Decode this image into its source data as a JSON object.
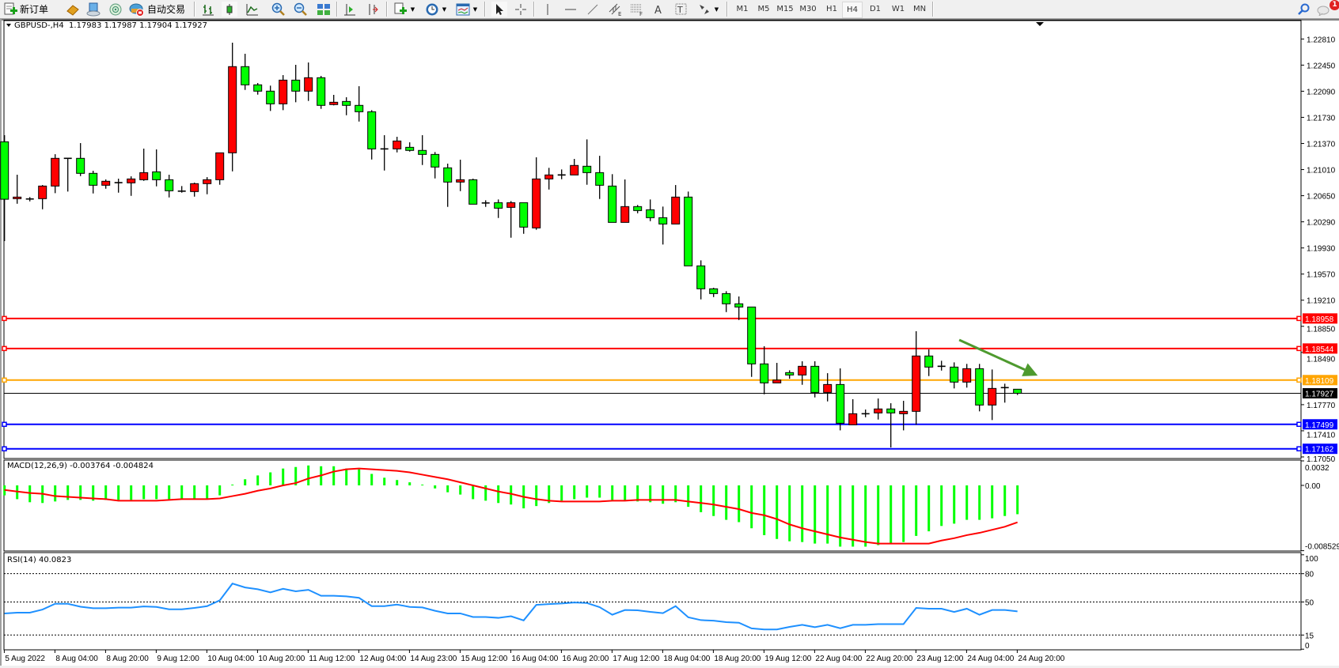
{
  "toolbar": {
    "new_order_label": "新订单",
    "auto_trading_label": "自动交易",
    "icons": [
      "new-order-icon",
      "history-center-icon",
      "terminal-icon",
      "signals-icon",
      "auto-trading-icon",
      "bar-chart-icon",
      "candlestick-icon",
      "line-chart-icon",
      "zoom-in-icon",
      "zoom-out-icon",
      "tile-windows-icon",
      "chart-shift-icon",
      "autoscroll-icon",
      "indicators-icon",
      "periods-clock-icon",
      "templates-icon",
      "cursor-icon",
      "crosshair-icon",
      "vertical-line-icon",
      "horizontal-line-icon",
      "trendline-icon",
      "equidistant-channel-icon",
      "fibonacci-icon",
      "text-icon",
      "text-label-icon",
      "arrows-icon",
      "search-icon",
      "chat-icon"
    ],
    "periods": [
      "M1",
      "M5",
      "M15",
      "M30",
      "H1",
      "H4",
      "D1",
      "W1",
      "MN"
    ],
    "active_period": "H4",
    "notification_count": "1"
  },
  "chart": {
    "header": "GBPUSD-,H4  1.17983 1.17987 1.17904 1.17927",
    "symbol": "GBPUSD-",
    "timeframe": "H4",
    "ohlc_header": {
      "open": 1.17983,
      "high": 1.17987,
      "low": 1.17904,
      "close": 1.17927
    }
  },
  "chart_data": [
    {
      "type": "candlestick",
      "title": "GBPUSD-,H4",
      "up_color": "#FF0000",
      "down_color": "#00FF00",
      "wick_color": "#000000",
      "ylim": [
        1.17028,
        1.23064
      ],
      "y_ticks": [
        "1.22810",
        "1.22450",
        "1.22090",
        "1.21730",
        "1.21370",
        "1.21010",
        "1.20650",
        "1.20290",
        "1.19930",
        "1.19570",
        "1.19210",
        "1.18850",
        "1.18490",
        "1.17770",
        "1.17410",
        "1.17050"
      ],
      "x_tick_labels": [
        "5 Aug 2022",
        "8 Aug 04:00",
        "8 Aug 20:00",
        "9 Aug 12:00",
        "10 Aug 04:00",
        "10 Aug 20:00",
        "11 Aug 12:00",
        "12 Aug 04:00",
        "14 Aug 23:00",
        "15 Aug 12:00",
        "16 Aug 04:00",
        "16 Aug 20:00",
        "17 Aug 12:00",
        "18 Aug 04:00",
        "18 Aug 20:00",
        "19 Aug 12:00",
        "22 Aug 04:00",
        "22 Aug 20:00",
        "23 Aug 12:00",
        "24 Aug 04:00",
        "24 Aug 20:00"
      ],
      "x_tick_every_bars": 4,
      "ohlc": [
        [
          1.21393,
          1.21484,
          1.20024,
          1.20601
        ],
        [
          1.20609,
          1.20939,
          1.20539,
          1.20631
        ],
        [
          1.20605,
          1.20631,
          1.20572,
          1.20605
        ],
        [
          1.20609,
          1.20797,
          1.20463,
          1.20783
        ],
        [
          1.20783,
          1.21222,
          1.20685,
          1.21165
        ],
        [
          1.21165,
          1.21165,
          1.20707,
          1.21165
        ],
        [
          1.21165,
          1.21375,
          1.2092,
          1.20958
        ],
        [
          1.20958,
          1.20994,
          1.20681,
          1.20794
        ],
        [
          1.20794,
          1.20874,
          1.20746,
          1.20849
        ],
        [
          1.2083,
          1.20885,
          1.20692,
          1.2083
        ],
        [
          1.20827,
          1.20917,
          1.20648,
          1.20881
        ],
        [
          1.2087,
          1.21299,
          1.20855,
          1.20968
        ],
        [
          1.20979,
          1.21288,
          1.20779,
          1.2087
        ],
        [
          1.2087,
          1.20939,
          1.20626,
          1.20718
        ],
        [
          1.20713,
          1.20783,
          1.20692,
          1.20713
        ],
        [
          1.20707,
          1.2083,
          1.20637,
          1.20816
        ],
        [
          1.20816,
          1.20906,
          1.2067,
          1.2087
        ],
        [
          1.2087,
          1.21241,
          1.20801,
          1.21241
        ],
        [
          1.21241,
          1.22759,
          1.20986,
          1.22429
        ],
        [
          1.22429,
          1.22606,
          1.22108,
          1.22178
        ],
        [
          1.22178,
          1.22203,
          1.22043,
          1.22091
        ],
        [
          1.22091,
          1.22167,
          1.21818,
          1.21916
        ],
        [
          1.21916,
          1.22312,
          1.21829,
          1.22243
        ],
        [
          1.22243,
          1.22454,
          1.21938,
          1.22091
        ],
        [
          1.22091,
          1.22486,
          1.21956,
          1.22276
        ],
        [
          1.22276,
          1.22301,
          1.21847,
          1.21895
        ],
        [
          1.21906,
          1.2204,
          1.21895,
          1.21938
        ],
        [
          1.21949,
          1.22007,
          1.21759,
          1.21895
        ],
        [
          1.21895,
          1.22159,
          1.21672,
          1.21807
        ],
        [
          1.21807,
          1.21829,
          1.21149,
          1.21295
        ],
        [
          1.21295,
          1.21484,
          1.20997,
          1.21295
        ],
        [
          1.21295,
          1.21462,
          1.21247,
          1.21404
        ],
        [
          1.21317,
          1.21386,
          1.21258,
          1.21274
        ],
        [
          1.21274,
          1.21484,
          1.21073,
          1.21219
        ],
        [
          1.21219,
          1.21252,
          1.20888,
          1.21045
        ],
        [
          1.21034,
          1.21092,
          1.20496,
          1.20838
        ],
        [
          1.20838,
          1.21146,
          1.20713,
          1.2087
        ],
        [
          1.2087,
          1.20885,
          1.20533,
          1.20533
        ],
        [
          1.2055,
          1.20587,
          1.20496,
          1.2055
        ],
        [
          1.20554,
          1.20598,
          1.20343,
          1.20478
        ],
        [
          1.20489,
          1.20576,
          1.20071,
          1.20554
        ],
        [
          1.20554,
          1.20554,
          1.20125,
          1.20217
        ],
        [
          1.20206,
          1.21179,
          1.2018,
          1.20881
        ],
        [
          1.20881,
          1.21034,
          1.20735,
          1.20936
        ],
        [
          1.20936,
          1.21012,
          1.20877,
          1.20936
        ],
        [
          1.20936,
          1.21157,
          1.20936,
          1.21067
        ],
        [
          1.21056,
          1.21426,
          1.20801,
          1.20968
        ],
        [
          1.20968,
          1.212,
          1.20605,
          1.20794
        ],
        [
          1.20783,
          1.20947,
          1.20282,
          1.20282
        ],
        [
          1.20282,
          1.20874,
          1.20282,
          1.205
        ],
        [
          1.205,
          1.20522,
          1.20408,
          1.20445
        ],
        [
          1.20456,
          1.20598,
          1.20299,
          1.20347
        ],
        [
          1.20347,
          1.205,
          1.19977,
          1.2026
        ],
        [
          1.2026,
          1.20797,
          1.2026,
          1.20631
        ],
        [
          1.20631,
          1.20707,
          1.19683,
          1.19683
        ],
        [
          1.19683,
          1.19759,
          1.19221,
          1.19367
        ],
        [
          1.19367,
          1.19381,
          1.19253,
          1.19301
        ],
        [
          1.19301,
          1.19334,
          1.19046,
          1.1916
        ],
        [
          1.1916,
          1.19261,
          1.18937,
          1.19116
        ],
        [
          1.19116,
          1.19116,
          1.18153,
          1.18332
        ],
        [
          1.18332,
          1.18575,
          1.17913,
          1.1807
        ],
        [
          1.1807,
          1.18346,
          1.1807,
          1.18109
        ],
        [
          1.18212,
          1.18244,
          1.18128,
          1.18179
        ],
        [
          1.18179,
          1.18368,
          1.18044,
          1.18299
        ],
        [
          1.18299,
          1.18368,
          1.1787,
          1.17939
        ],
        [
          1.17939,
          1.18204,
          1.17815,
          1.18048
        ],
        [
          1.18048,
          1.1827,
          1.17416,
          1.17514
        ],
        [
          1.17493,
          1.17845,
          1.17493,
          1.17645
        ],
        [
          1.17645,
          1.17703,
          1.17597,
          1.17645
        ],
        [
          1.17656,
          1.17855,
          1.17565,
          1.17711
        ],
        [
          1.17711,
          1.1779,
          1.1718,
          1.17656
        ],
        [
          1.17645,
          1.17823,
          1.17416,
          1.17678
        ],
        [
          1.17678,
          1.18782,
          1.17493,
          1.18441
        ],
        [
          1.18441,
          1.18531,
          1.18164,
          1.18288
        ],
        [
          1.18299,
          1.18375,
          1.1824,
          1.18299
        ],
        [
          1.18288,
          1.18353,
          1.17994,
          1.18081
        ],
        [
          1.18081,
          1.18332,
          1.18005,
          1.18266
        ],
        [
          1.18266,
          1.18332,
          1.17678,
          1.17765
        ],
        [
          1.17765,
          1.18255,
          1.17558,
          1.17994
        ],
        [
          1.18005,
          1.18059,
          1.17798,
          1.18005
        ],
        [
          1.17983,
          1.17987,
          1.17904,
          1.17927
        ]
      ],
      "horizontal_lines": [
        {
          "price": 1.18958,
          "label": "1.18958",
          "color": "#FF0000",
          "kind": "drawn"
        },
        {
          "price": 1.18544,
          "label": "1.18544",
          "color": "#FF0000",
          "kind": "drawn"
        },
        {
          "price": 1.18109,
          "label": "1.18109",
          "color": "#FFA500",
          "kind": "drawn"
        },
        {
          "price": 1.17927,
          "label": "1.17927",
          "color": "#000000",
          "kind": "bid"
        },
        {
          "price": 1.17499,
          "label": "1.17499",
          "color": "#0000FF",
          "kind": "drawn"
        },
        {
          "price": 1.17162,
          "label": "1.17162",
          "color": "#0000FF",
          "kind": "drawn"
        }
      ],
      "arrow": {
        "color": "#4E9A2E",
        "from": {
          "bar": 75.4,
          "price": 1.18662
        },
        "to": {
          "bar": 81.6,
          "price": 1.18171
        }
      }
    },
    {
      "type": "bar+line",
      "label": "MACD(12,26,9) -0.003764 -0.004824",
      "ylim": [
        -0.008529,
        0.0032
      ],
      "y_ticks": [
        "0.0032",
        "0.00",
        "-0.008529"
      ],
      "histogram_color": "#00FF00",
      "signal_color": "#FF0000",
      "macd": [
        -0.0013,
        -0.0018,
        -0.0022,
        -0.0023,
        -0.0021,
        -0.0019,
        -0.0019,
        -0.002,
        -0.0019,
        -0.0019,
        -0.0019,
        -0.0018,
        -0.0018,
        -0.0018,
        -0.0018,
        -0.0018,
        -0.0017,
        -0.0013,
        0.0001,
        0.0008,
        0.0013,
        0.0017,
        0.0022,
        0.0024,
        0.0026,
        0.0025,
        0.0025,
        0.0022,
        0.0021,
        0.0015,
        0.001,
        0.0007,
        0.0004,
        0.0001,
        -0.0004,
        -0.0009,
        -0.0012,
        -0.0018,
        -0.002,
        -0.0023,
        -0.0025,
        -0.003,
        -0.0027,
        -0.0023,
        -0.002,
        -0.0018,
        -0.0016,
        -0.0016,
        -0.0019,
        -0.002,
        -0.0021,
        -0.0022,
        -0.0024,
        -0.0022,
        -0.0028,
        -0.0035,
        -0.004,
        -0.0045,
        -0.0048,
        -0.0056,
        -0.0065,
        -0.007,
        -0.0073,
        -0.0074,
        -0.0076,
        -0.0076,
        -0.008,
        -0.008,
        -0.008,
        -0.0078,
        -0.0076,
        -0.0074,
        -0.0066,
        -0.006,
        -0.0053,
        -0.005,
        -0.0045,
        -0.0045,
        -0.0043,
        -0.004,
        -0.003764
      ],
      "signal": [
        -0.0006,
        -0.0008,
        -0.001,
        -0.0011,
        -0.0014,
        -0.0015,
        -0.0016,
        -0.0017,
        -0.0018,
        -0.002,
        -0.002,
        -0.002,
        -0.002,
        -0.0019,
        -0.0018,
        -0.0018,
        -0.0018,
        -0.0017,
        -0.0014,
        -0.0011,
        -0.0007,
        -0.0004,
        0.0,
        0.0003,
        0.0009,
        0.0013,
        0.0018,
        0.0021,
        0.0022,
        0.0021,
        0.002,
        0.0019,
        0.0017,
        0.0014,
        0.0011,
        0.0008,
        0.0004,
        0.0,
        -0.0004,
        -0.0008,
        -0.0011,
        -0.0015,
        -0.0018,
        -0.002,
        -0.0021,
        -0.0021,
        -0.0021,
        -0.0021,
        -0.002,
        -0.002,
        -0.0019,
        -0.0019,
        -0.0019,
        -0.0019,
        -0.0021,
        -0.0023,
        -0.0025,
        -0.0028,
        -0.0031,
        -0.0036,
        -0.0039,
        -0.0044,
        -0.0051,
        -0.0056,
        -0.006,
        -0.0064,
        -0.0068,
        -0.0071,
        -0.0074,
        -0.0076,
        -0.0076,
        -0.0076,
        -0.0076,
        -0.0076,
        -0.0072,
        -0.0069,
        -0.0065,
        -0.0062,
        -0.0058,
        -0.0054,
        -0.004824
      ]
    },
    {
      "type": "line",
      "label": "RSI(14) 40.0823",
      "ylim": [
        0,
        100
      ],
      "y_ticks": [
        "100",
        "80",
        "50",
        "15",
        "0"
      ],
      "levels": [
        80,
        50,
        15
      ],
      "color": "#1E90FF",
      "values": [
        37.9,
        38.7,
        38.7,
        42.0,
        48.1,
        48.1,
        45.0,
        43.4,
        43.4,
        44.0,
        44.0,
        45.3,
        44.8,
        42.3,
        42.3,
        43.7,
        45.6,
        51.7,
        69.5,
        65.4,
        63.5,
        60.2,
        64.0,
        61.3,
        62.9,
        56.6,
        56.6,
        56.0,
        54.4,
        45.6,
        45.6,
        47.3,
        44.8,
        44.2,
        40.7,
        37.9,
        37.9,
        34.1,
        34.1,
        33.2,
        34.9,
        30.5,
        47.0,
        47.8,
        48.4,
        49.5,
        48.9,
        44.5,
        36.5,
        41.5,
        41.2,
        39.5,
        38.2,
        45.6,
        33.8,
        30.8,
        30.2,
        28.6,
        28.0,
        22.0,
        20.9,
        20.9,
        23.6,
        25.8,
        23.3,
        25.8,
        22.2,
        25.8,
        25.8,
        26.6,
        26.6,
        26.6,
        43.7,
        42.9,
        42.9,
        39.5,
        42.9,
        36.5,
        41.5,
        41.5,
        40.0823
      ]
    }
  ]
}
